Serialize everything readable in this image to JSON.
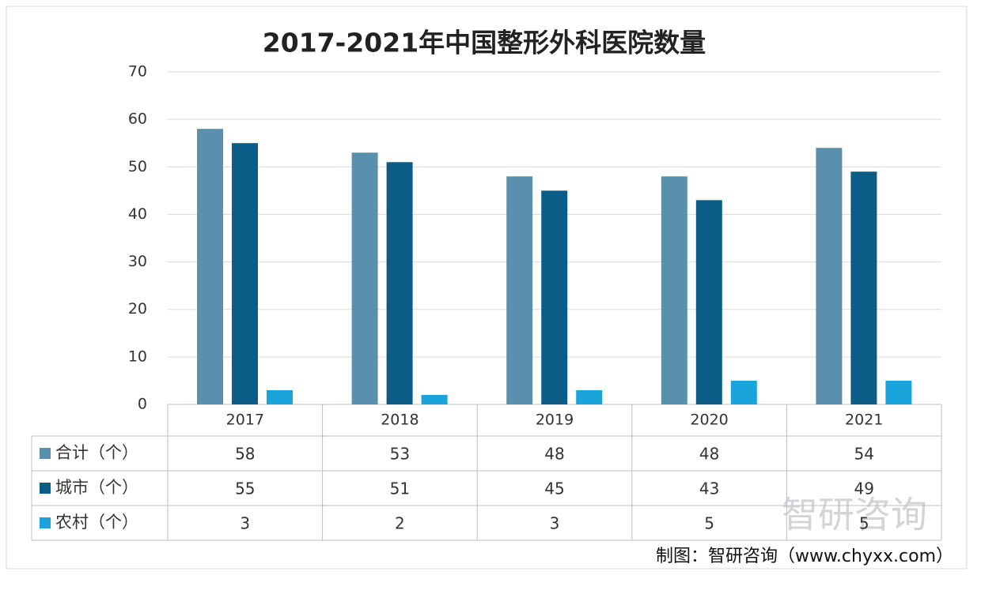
{
  "chart_data": {
    "type": "bar",
    "title": "2017-2021年中国整形外科医院数量",
    "categories": [
      "2017",
      "2018",
      "2019",
      "2020",
      "2021"
    ],
    "series": [
      {
        "name": "合计（个）",
        "color": "#5b8fae",
        "values": [
          58,
          53,
          48,
          48,
          54
        ]
      },
      {
        "name": "城市（个）",
        "color": "#0b5d87",
        "values": [
          55,
          51,
          45,
          43,
          49
        ]
      },
      {
        "name": "农村（个）",
        "color": "#1ba3dc",
        "values": [
          3,
          2,
          3,
          5,
          5
        ]
      }
    ],
    "ylim": [
      0,
      70
    ],
    "yticks": [
      0,
      10,
      20,
      30,
      40,
      50,
      60,
      70
    ],
    "grid": true,
    "watermark": "智研咨询",
    "source": "制图：智研咨询（www.chyxx.com）"
  }
}
